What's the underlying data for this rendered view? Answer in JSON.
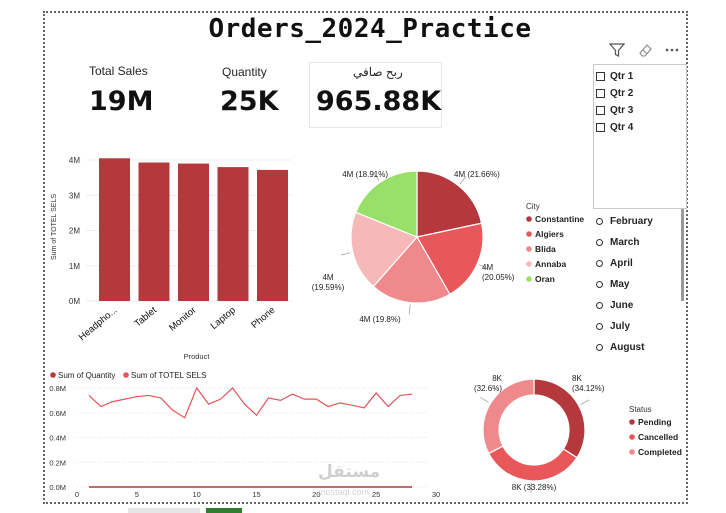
{
  "title": "Orders_2024_Practice",
  "cards": [
    {
      "label": "Total Sales",
      "value": "19M"
    },
    {
      "label": "Quantity",
      "value": "25K"
    },
    {
      "label": "ربح صافي",
      "value": "965.88K"
    }
  ],
  "toolbar": {
    "filter_icon": "filter-icon",
    "eraser_icon": "eraser-icon",
    "more_icon": "more-options-icon"
  },
  "quarters": [
    "Qtr 1",
    "Qtr 2",
    "Qtr 3",
    "Qtr 4"
  ],
  "months": [
    "February",
    "March",
    "April",
    "May",
    "June",
    "July",
    "August"
  ],
  "colors": {
    "bar": "#b5393c",
    "line": "#e0555a",
    "line_dark": "#c0392b"
  },
  "chart_data": [
    {
      "type": "bar",
      "categories": [
        "Headpho...",
        "Tablet",
        "Monitor",
        "Laptop",
        "Phone"
      ],
      "values": [
        4.05,
        3.93,
        3.9,
        3.8,
        3.72
      ],
      "unit": "M",
      "xlabel": "Product",
      "ylabel": "Sum of TOTEL SELS",
      "yticks": [
        "0M",
        "1M",
        "2M",
        "3M",
        "4M"
      ],
      "ylim": [
        0,
        4.2
      ]
    },
    {
      "type": "pie",
      "legend_title": "City",
      "legend_position": "right",
      "slices": [
        {
          "name": "Constantine",
          "value": 21.66,
          "label": "4M (21.66%)",
          "color": "#b5393c"
        },
        {
          "name": "Algiers",
          "value": 20.05,
          "label": "4M\n(20.05%)",
          "color": "#e8575a"
        },
        {
          "name": "Blida",
          "value": 19.8,
          "label": "4M (19.8%)",
          "color": "#f0898c"
        },
        {
          "name": "Annaba",
          "value": 19.59,
          "label": "4M\n(19.59%)",
          "color": "#f6b8b9"
        },
        {
          "name": "Oran",
          "value": 18.91,
          "label": "4M (18.91%)",
          "color": "#98e06a"
        }
      ]
    },
    {
      "type": "line",
      "legend_position": "top-left",
      "series": [
        {
          "name": "Sum of Quantity",
          "color": "#b5393c",
          "values": [
            0,
            0,
            0,
            0,
            0,
            0,
            0,
            0,
            0,
            0,
            0,
            0,
            0,
            0,
            0,
            0,
            0,
            0,
            0,
            0,
            0,
            0,
            0,
            0,
            0,
            0,
            0,
            0
          ]
        },
        {
          "name": "Sum of TOTEL SELS",
          "color": "#e0555a",
          "values": [
            0.74,
            0.65,
            0.69,
            0.71,
            0.73,
            0.74,
            0.72,
            0.62,
            0.56,
            0.8,
            0.67,
            0.71,
            0.8,
            0.67,
            0.58,
            0.72,
            0.7,
            0.75,
            0.71,
            0.71,
            0.65,
            0.68,
            0.66,
            0.64,
            0.76,
            0.65,
            0.74,
            0.75
          ]
        }
      ],
      "x": [
        1,
        2,
        3,
        4,
        5,
        6,
        7,
        8,
        9,
        10,
        11,
        12,
        13,
        14,
        15,
        16,
        17,
        18,
        19,
        20,
        21,
        22,
        23,
        24,
        25,
        26,
        27,
        28
      ],
      "xticks": [
        "0",
        "5",
        "10",
        "15",
        "20",
        "25",
        "30"
      ],
      "yticks": [
        "0.0M",
        "0.2M",
        "0.4M",
        "0.6M",
        "0.8M"
      ],
      "xlim": [
        0,
        30
      ],
      "ylim": [
        0,
        0.85
      ]
    },
    {
      "type": "pie",
      "subtype": "donut",
      "legend_title": "Status",
      "legend_position": "right",
      "slices": [
        {
          "name": "Pending",
          "value": 34.12,
          "label": "8K\n(34.12%)",
          "color": "#b5393c"
        },
        {
          "name": "Cancelled",
          "value": 33.28,
          "label": "8K (33.28%)",
          "color": "#e8575a"
        },
        {
          "name": "Completed",
          "value": 32.6,
          "label": "8K\n(32.6%)",
          "color": "#f0898c"
        }
      ]
    }
  ],
  "watermark": "مستقل\nmostaql.com"
}
